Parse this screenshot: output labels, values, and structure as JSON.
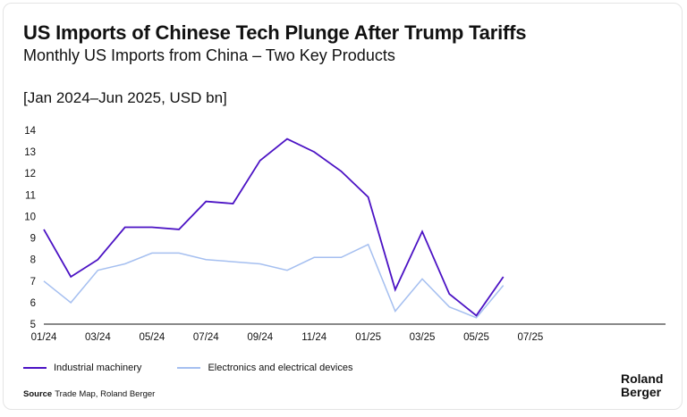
{
  "header": {
    "title": "US Imports of Chinese Tech Plunge After Trump Tariffs",
    "subtitle": "Monthly US Imports from China – Two Key Products",
    "period": "[Jan 2024–Jun 2025, USD bn]"
  },
  "chart_data": {
    "type": "line",
    "x": [
      "01/24",
      "02/24",
      "03/24",
      "04/24",
      "05/24",
      "06/24",
      "07/24",
      "08/24",
      "09/24",
      "10/24",
      "11/24",
      "12/24",
      "01/25",
      "02/25",
      "03/25",
      "04/25",
      "05/25",
      "06/25"
    ],
    "x_tick_labels": [
      "01/24",
      "03/24",
      "05/24",
      "07/24",
      "09/24",
      "11/24",
      "01/25",
      "03/25",
      "05/25",
      "07/25"
    ],
    "x_tick_values": [
      "01/24",
      "03/24",
      "05/24",
      "07/24",
      "09/24",
      "11/24",
      "01/25",
      "03/25",
      "05/25",
      "07/25"
    ],
    "ylim": [
      5,
      14
    ],
    "y_ticks": [
      5,
      6,
      7,
      8,
      9,
      10,
      11,
      12,
      13,
      14
    ],
    "x_range": [
      "01/24",
      "12/25"
    ],
    "grid": false,
    "legend_position": "bottom-left",
    "series": [
      {
        "name": "Industrial machinery",
        "color": "#4b12c4",
        "values": [
          9.4,
          7.2,
          8.0,
          9.5,
          9.5,
          9.4,
          10.7,
          10.6,
          12.6,
          13.6,
          13.0,
          12.1,
          10.9,
          6.6,
          9.3,
          6.4,
          5.4,
          7.2
        ]
      },
      {
        "name": "Electronics and electrical devices",
        "color": "#a5bff0",
        "values": [
          7.0,
          6.0,
          7.5,
          7.8,
          8.3,
          8.3,
          8.0,
          7.9,
          7.8,
          7.5,
          8.1,
          8.1,
          8.7,
          5.6,
          7.1,
          5.8,
          5.3,
          6.8
        ]
      }
    ]
  },
  "footer": {
    "source_label": "Source",
    "source_text": "Trade Map, Roland Berger",
    "logo_line1": "Roland",
    "logo_line2": "Berger"
  }
}
